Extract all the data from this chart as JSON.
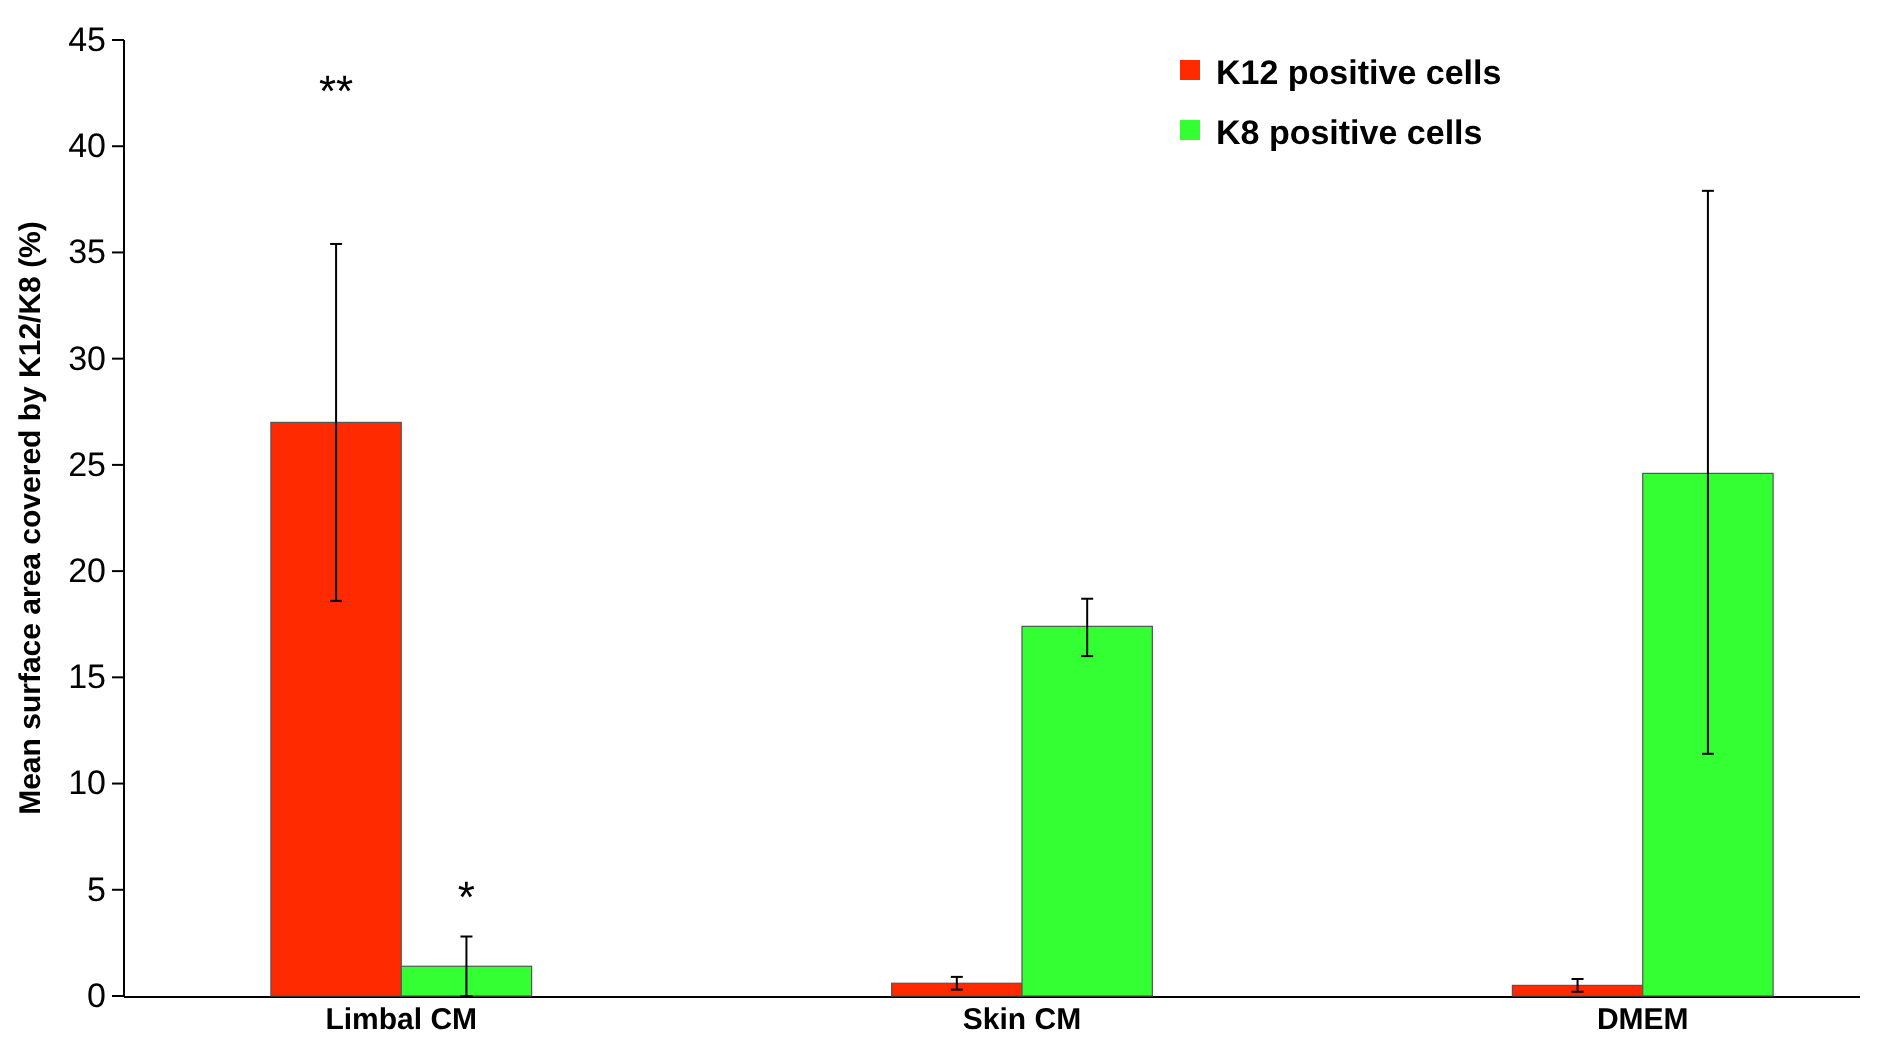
{
  "chart_data": {
    "type": "bar",
    "ylabel": "Mean surface area covered by K12/K8 (%)",
    "categories": [
      "Limbal CM",
      "Skin CM",
      "DMEM"
    ],
    "series": [
      {
        "name": "K12 positive cells",
        "color": "#ff2a00",
        "values": [
          27,
          0.6,
          0.5
        ],
        "errors": [
          8.4,
          0.3,
          0.3
        ]
      },
      {
        "name": "K8 positive cells",
        "color": "#33ff33",
        "values": [
          1.4,
          17.4,
          24.6
        ],
        "errors": [
          [
            0,
            2.8
          ],
          [
            16.0,
            18.7
          ],
          [
            11.4,
            37.9
          ]
        ]
      }
    ],
    "ylim": [
      0,
      45
    ],
    "yticks": [
      0,
      5,
      10,
      15,
      20,
      25,
      30,
      35,
      40,
      45
    ],
    "legend": "top right",
    "annotations": [
      "**",
      "*"
    ]
  }
}
